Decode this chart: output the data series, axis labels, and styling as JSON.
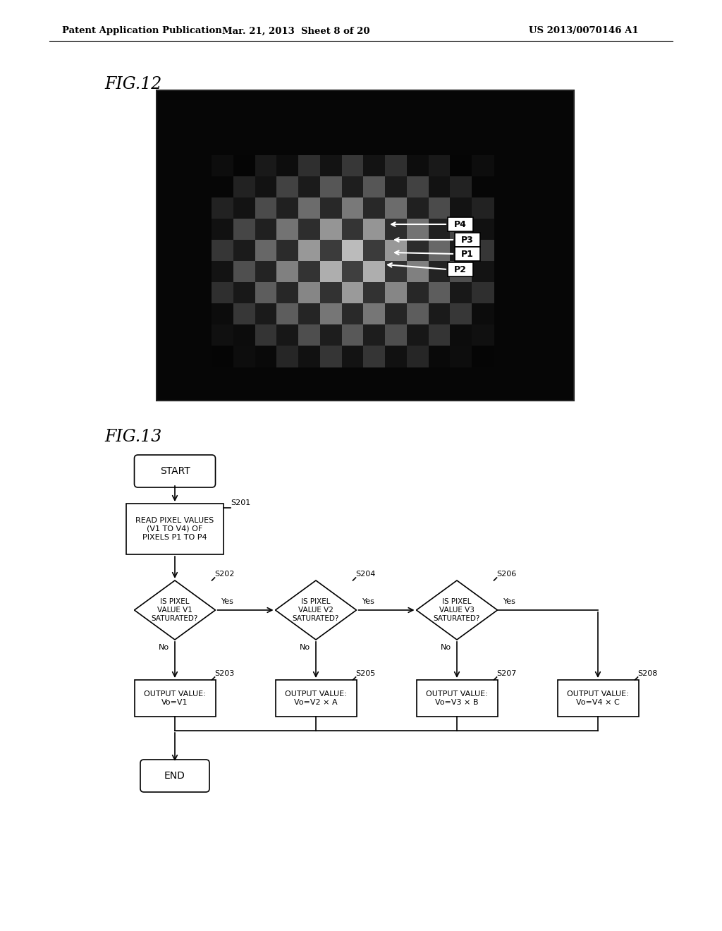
{
  "header_left": "Patent Application Publication",
  "header_mid": "Mar. 21, 2013  Sheet 8 of 20",
  "header_right": "US 2013/0070146 A1",
  "fig12_label": "FIG.12",
  "fig13_label": "FIG.13",
  "bg_color": "#ffffff",
  "text_color": "#000000",
  "flowchart": {
    "start_label": "START",
    "end_label": "END",
    "read_label": "READ PIXEL VALUES\n(V1 TO V4) OF\nPIXELS P1 TO P4",
    "read_step": "S201",
    "diamonds": [
      {
        "label": "IS PIXEL\nVALUE V1\nSATURATED?",
        "step": "S202"
      },
      {
        "label": "IS PIXEL\nVALUE V2\nSATURATED?",
        "step": "S204"
      },
      {
        "label": "IS PIXEL\nVALUE V3\nSATURATED?",
        "step": "S206"
      }
    ],
    "outputs": [
      {
        "label": "OUTPUT VALUE:\nVo=V1",
        "step": "S203"
      },
      {
        "label": "OUTPUT VALUE:\nVo=V2 × A",
        "step": "S205"
      },
      {
        "label": "OUTPUT VALUE:\nVo=V3 × B",
        "step": "S207"
      },
      {
        "label": "OUTPUT VALUE:\nVo=V4 × C",
        "step": "S208"
      }
    ],
    "yes_labels": [
      "Yes",
      "Yes",
      "Yes"
    ],
    "no_labels": [
      "No",
      "No",
      "No"
    ]
  }
}
